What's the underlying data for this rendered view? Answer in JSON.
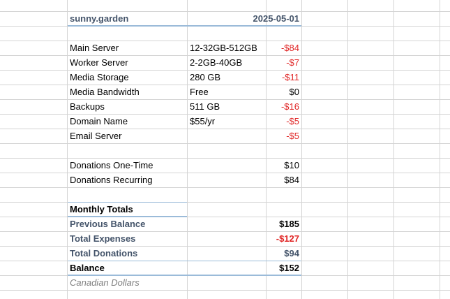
{
  "header": {
    "title": "sunny.garden",
    "date": "2025-05-01"
  },
  "expenses": [
    {
      "name": "Main Server",
      "detail": "12-32GB-512GB",
      "amount": "-$84",
      "negative": true
    },
    {
      "name": "Worker Server",
      "detail": "2-2GB-40GB",
      "amount": "-$7",
      "negative": true
    },
    {
      "name": "Media Storage",
      "detail": "280 GB",
      "amount": "-$11",
      "negative": true
    },
    {
      "name": "Media Bandwidth",
      "detail": "Free",
      "amount": "$0",
      "negative": false
    },
    {
      "name": "Backups",
      "detail": "511 GB",
      "amount": "-$16",
      "negative": true
    },
    {
      "name": "Domain Name",
      "detail": "$55/yr",
      "amount": "-$5",
      "negative": true
    },
    {
      "name": "Email Server",
      "detail": "",
      "amount": "-$5",
      "negative": true
    }
  ],
  "donations": [
    {
      "name": "Donations One-Time",
      "amount": "$10"
    },
    {
      "name": "Donations Recurring",
      "amount": "$84"
    }
  ],
  "totals": {
    "heading": "Monthly Totals",
    "previous_balance_label": "Previous Balance",
    "previous_balance": "$185",
    "total_expenses_label": "Total Expenses",
    "total_expenses": "-$127",
    "total_donations_label": "Total Donations",
    "total_donations": "$94",
    "balance_label": "Balance",
    "balance": "$152"
  },
  "footnote": "Canadian Dollars",
  "colors": {
    "negative": "#e02424",
    "heading_blue": "#44546a",
    "rule": "#9bbbd9",
    "grid": "#d4d4d4"
  }
}
